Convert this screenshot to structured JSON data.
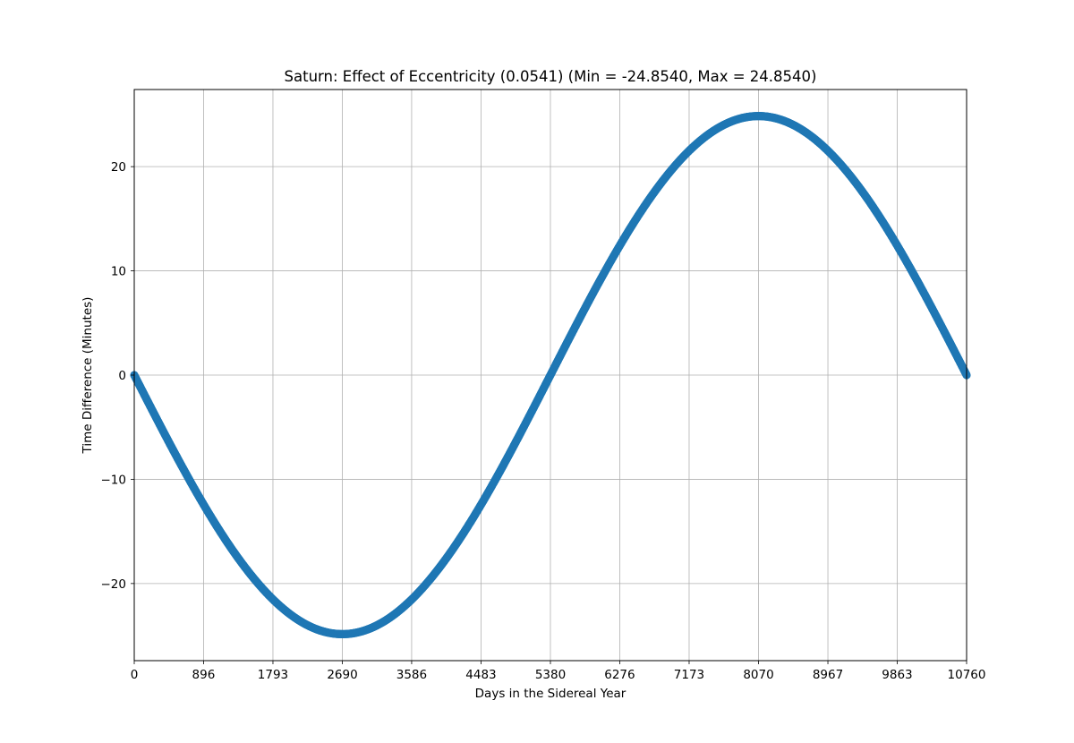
{
  "chart_data": {
    "type": "scatter",
    "title": "Saturn: Effect of Eccentricity (0.0541) (Min = -24.8540, Max = 24.8540)",
    "xlabel": "Days in the Sidereal Year",
    "ylabel": "Time Difference (Minutes)",
    "xlim": [
      0,
      10760
    ],
    "ylim": [
      -27.4,
      27.4
    ],
    "xticks": [
      0,
      896,
      1793,
      2690,
      3586,
      4483,
      5380,
      6276,
      7173,
      8070,
      8967,
      9863,
      10760
    ],
    "yticks": [
      -20,
      -10,
      0,
      10,
      20
    ],
    "ytick_labels": [
      "−20",
      "−10",
      "0",
      "10",
      "20"
    ],
    "grid": true,
    "series": [
      {
        "color": "#1f77b4",
        "period_days": 10760,
        "amplitude": 24.854,
        "points": [
          [
            0,
            0
          ],
          [
            448,
            -6.5
          ],
          [
            896,
            -12.4
          ],
          [
            1345,
            -17.6
          ],
          [
            1793,
            -21.5
          ],
          [
            2242,
            -24.0
          ],
          [
            2690,
            -24.85
          ],
          [
            3138,
            -24.0
          ],
          [
            3586,
            -21.5
          ],
          [
            4035,
            -17.6
          ],
          [
            4483,
            -12.4
          ],
          [
            4932,
            -6.5
          ],
          [
            5380,
            0
          ],
          [
            5828,
            6.5
          ],
          [
            6276,
            12.4
          ],
          [
            6725,
            17.6
          ],
          [
            7173,
            21.5
          ],
          [
            7622,
            24.0
          ],
          [
            8070,
            24.85
          ],
          [
            8518,
            24.0
          ],
          [
            8967,
            21.5
          ],
          [
            9415,
            17.6
          ],
          [
            9863,
            12.4
          ],
          [
            10312,
            6.5
          ],
          [
            10760,
            0
          ]
        ]
      }
    ]
  }
}
